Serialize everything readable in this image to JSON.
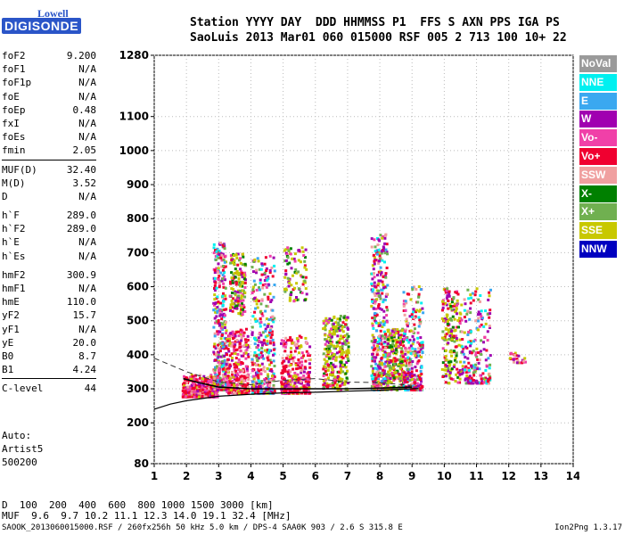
{
  "logo": {
    "line1": "Lowell",
    "line2": "DIGISONDE"
  },
  "header": {
    "line1": "Station YYYY DAY  DDD HHMMSS P1  FFS S AXN PPS IGA PS",
    "line2": "SaoLuis 2013 Mar01 060 015000 RSF 005 2 713 100 10+ 22"
  },
  "params": [
    [
      {
        "k": "foF2",
        "v": "9.200"
      },
      {
        "k": "foF1",
        "v": "N/A"
      },
      {
        "k": "foF1p",
        "v": "N/A"
      },
      {
        "k": "foE",
        "v": "N/A"
      },
      {
        "k": "foEp",
        "v": "0.48"
      },
      {
        "k": "fxI",
        "v": "N/A"
      },
      {
        "k": "foEs",
        "v": "N/A"
      },
      {
        "k": "fmin",
        "v": "2.05"
      }
    ],
    [
      {
        "k": "MUF(D)",
        "v": "32.40"
      },
      {
        "k": "M(D)",
        "v": "3.52"
      },
      {
        "k": "D",
        "v": "N/A"
      }
    ],
    [
      {
        "k": "h`F",
        "v": "289.0"
      },
      {
        "k": "h`F2",
        "v": "289.0"
      },
      {
        "k": "h`E",
        "v": "N/A"
      },
      {
        "k": "h`Es",
        "v": "N/A"
      }
    ],
    [
      {
        "k": "hmF2",
        "v": "300.9"
      },
      {
        "k": "hmF1",
        "v": "N/A"
      },
      {
        "k": "hmE",
        "v": "110.0"
      },
      {
        "k": "yF2",
        "v": "15.7"
      },
      {
        "k": "yF1",
        "v": "N/A"
      },
      {
        "k": "yE",
        "v": "20.0"
      },
      {
        "k": "B0",
        "v": "8.7"
      },
      {
        "k": "B1",
        "v": "4.24"
      }
    ],
    [
      {
        "k": "C-level",
        "v": "44"
      }
    ]
  ],
  "auto": {
    "line1": "Auto:",
    "line2": "Artist5",
    "line3": "500200"
  },
  "muf_table": {
    "d_label": "D",
    "d_values": "  100  200  400  600  800 1000 1500 3000 [km]",
    "muf_label": "MUF",
    "muf_values": "  9.6  9.7 10.2 11.1 12.3 14.0 19.1 32.4 [MHz]"
  },
  "footer": {
    "left": "SAOOK_2013060015000.RSF / 260fx256h 50 kHz 5.0 km / DPS-4 SAA0K 903 / 2.6 S 315.8 E",
    "right": "Ion2Png 1.3.17"
  },
  "legend": [
    {
      "label": "NoVal",
      "color": "#9a9a9a"
    },
    {
      "label": "NNE",
      "color": "#00f0f0"
    },
    {
      "label": "E",
      "color": "#3aa8f0"
    },
    {
      "label": "W",
      "color": "#a000b0"
    },
    {
      "label": "Vo-",
      "color": "#f040a8"
    },
    {
      "label": "Vo+",
      "color": "#f00030"
    },
    {
      "label": "SSW",
      "color": "#f0a0a0"
    },
    {
      "label": "X-",
      "color": "#008000"
    },
    {
      "label": "X+",
      "color": "#70b050"
    },
    {
      "label": "SSE",
      "color": "#c8c800"
    },
    {
      "label": "NNW",
      "color": "#0000c0"
    }
  ],
  "chart_data": {
    "type": "scatter",
    "title": "",
    "xlabel": "",
    "ylabel": "",
    "xlim": [
      1,
      14
    ],
    "ylim": [
      80,
      1280
    ],
    "x_ticks": [
      1,
      2,
      3,
      4,
      5,
      6,
      7,
      8,
      9,
      10,
      11,
      12,
      13,
      14
    ],
    "y_ticks": [
      80,
      200,
      300,
      400,
      500,
      600,
      700,
      800,
      900,
      1000,
      1100,
      1280
    ],
    "grid": true,
    "clusters": [
      {
        "f": [
          1.85,
          2.95
        ],
        "h": [
          280,
          345
        ],
        "n": 420,
        "mix": "red"
      },
      {
        "f": [
          2.8,
          3.2
        ],
        "h": [
          300,
          740
        ],
        "n": 380,
        "mix": "mixed"
      },
      {
        "f": [
          3.2,
          3.9
        ],
        "h": [
          290,
          480
        ],
        "n": 320,
        "mix": "red"
      },
      {
        "f": [
          3.3,
          3.8
        ],
        "h": [
          520,
          700
        ],
        "n": 150,
        "mix": "yellow"
      },
      {
        "f": [
          4.0,
          4.7
        ],
        "h": [
          290,
          700
        ],
        "n": 360,
        "mix": "mixed"
      },
      {
        "f": [
          4.9,
          5.8
        ],
        "h": [
          290,
          460
        ],
        "n": 300,
        "mix": "red"
      },
      {
        "f": [
          5.0,
          5.7
        ],
        "h": [
          560,
          720
        ],
        "n": 90,
        "mix": "yellow"
      },
      {
        "f": [
          6.2,
          7.0
        ],
        "h": [
          300,
          520
        ],
        "n": 300,
        "mix": "yellow"
      },
      {
        "f": [
          7.7,
          8.2
        ],
        "h": [
          300,
          760
        ],
        "n": 400,
        "mix": "mixed"
      },
      {
        "f": [
          8.2,
          8.7
        ],
        "h": [
          300,
          480
        ],
        "n": 240,
        "mix": "yellow"
      },
      {
        "f": [
          8.7,
          9.3
        ],
        "h": [
          300,
          610
        ],
        "n": 260,
        "mix": "mixed"
      },
      {
        "f": [
          9.9,
          10.5
        ],
        "h": [
          320,
          600
        ],
        "n": 200,
        "mix": "yellow"
      },
      {
        "f": [
          10.5,
          11.4
        ],
        "h": [
          320,
          600
        ],
        "n": 200,
        "mix": "mixed"
      },
      {
        "f": [
          12.0,
          12.5
        ],
        "h": [
          380,
          410
        ],
        "n": 25,
        "mix": "red"
      }
    ],
    "trace_solid": [
      [
        1,
        240
      ],
      [
        1.5,
        255
      ],
      [
        2,
        265
      ],
      [
        3,
        278
      ],
      [
        4,
        284
      ],
      [
        5,
        288
      ],
      [
        6,
        290
      ],
      [
        7,
        293
      ],
      [
        8,
        296
      ],
      [
        9,
        300
      ],
      [
        9.2,
        301
      ]
    ],
    "trace_dashed": [
      [
        1,
        390
      ],
      [
        2,
        350
      ],
      [
        3,
        320
      ],
      [
        4,
        312
      ],
      [
        5,
        325
      ],
      [
        6,
        330
      ],
      [
        7,
        320
      ],
      [
        8,
        318
      ],
      [
        9,
        310
      ]
    ],
    "trace_profile": [
      [
        1.9,
        330
      ],
      [
        2.3,
        320
      ],
      [
        3,
        305
      ],
      [
        4,
        300
      ],
      [
        5,
        300
      ],
      [
        6,
        300
      ],
      [
        7,
        300
      ],
      [
        8,
        302
      ],
      [
        9,
        305
      ]
    ]
  }
}
